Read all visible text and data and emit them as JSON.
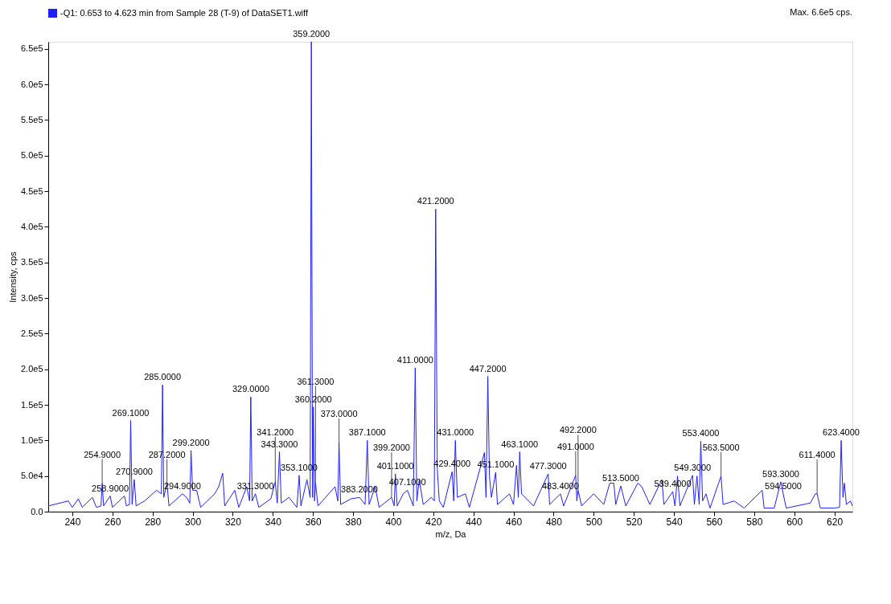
{
  "chart_data": {
    "type": "line",
    "xlabel": "m/z, Da",
    "ylabel": "Intensity, cps",
    "xlim": [
      228,
      629
    ],
    "xticks": [
      240,
      260,
      280,
      300,
      320,
      340,
      360,
      380,
      400,
      420,
      440,
      460,
      480,
      500,
      520,
      540,
      560,
      580,
      600,
      620
    ],
    "ylim": [
      0,
      660000
    ],
    "yticks": [
      {
        "value": 0,
        "label": "0.0"
      },
      {
        "value": 50000,
        "label": "5.0e4"
      },
      {
        "value": 100000,
        "label": "1.0e5"
      },
      {
        "value": 150000,
        "label": "1.5e5"
      },
      {
        "value": 200000,
        "label": "2.0e5"
      },
      {
        "value": 250000,
        "label": "2.5e5"
      },
      {
        "value": 300000,
        "label": "3.0e5"
      },
      {
        "value": 350000,
        "label": "3.5e5"
      },
      {
        "value": 400000,
        "label": "4.0e5"
      },
      {
        "value": 450000,
        "label": "4.5e5"
      },
      {
        "value": 500000,
        "label": "5.0e5"
      },
      {
        "value": 550000,
        "label": "5.5e5"
      },
      {
        "value": 600000,
        "label": "6.0e5"
      },
      {
        "value": 650000,
        "label": "6.5e5"
      }
    ],
    "grid": false,
    "legend": "top left",
    "marker": "none",
    "line_style": "solid",
    "series": [
      {
        "name": "-Q1: 0.653 to 4.623 min from Sample 28 (T-9) of DataSET1.wiff",
        "color": "#1f1fff",
        "x": [
          228,
          238,
          240,
          243,
          245,
          250,
          252,
          254.3,
          254.9,
          255.6,
          258.9,
          260,
          266,
          267,
          268.5,
          269.1,
          269.8,
          270.9,
          271.8,
          276,
          282,
          284.4,
          285.0,
          285.6,
          287.2,
          288.2,
          294.9,
          297,
          298.6,
          299.2,
          300,
          302,
          304,
          311,
          313,
          315,
          316,
          321,
          323,
          327,
          328.4,
          329.0,
          329.7,
          331.3,
          333,
          339,
          341.2,
          342.2,
          343.3,
          344.2,
          348,
          352,
          353.1,
          354,
          357,
          358.6,
          359.2,
          359.8,
          360.2,
          360.8,
          361.3,
          362.5,
          371,
          372.4,
          373.0,
          373.8,
          379,
          383.2,
          386,
          387.1,
          388,
          391,
          393,
          399.2,
          400.5,
          401.1,
          402,
          405,
          407.1,
          410,
          411.0,
          411.8,
          413,
          415,
          419,
          420.5,
          421.2,
          422,
          423,
          425,
          429.4,
          430.2,
          431.0,
          432,
          436,
          438,
          445.5,
          446.3,
          447.2,
          448,
          449,
          451.1,
          452,
          458,
          460,
          461.5,
          462.4,
          463.1,
          464,
          470,
          477.3,
          478,
          483.4,
          485,
          491.0,
          491.6,
          492.2,
          494,
          500,
          505,
          508,
          510,
          511,
          513.5,
          516,
          522,
          524,
          528,
          534,
          535,
          539.4,
          540.5,
          541.8,
          543,
          549.3,
          550.2,
          551.5,
          552.6,
          553.4,
          554.3,
          556,
          558,
          563.5,
          564.5,
          570,
          575,
          584,
          585,
          590,
          593.3,
          594.5,
          596,
          608,
          610.5,
          611.4,
          613,
          620,
          622.6,
          623.4,
          624.3,
          625,
          626,
          628,
          629
        ],
        "values": [
          8000,
          15000,
          6000,
          18000,
          6000,
          20000,
          6000,
          8000,
          40000,
          8000,
          22000,
          6000,
          22000,
          8000,
          10000,
          128000,
          10000,
          45000,
          8000,
          15000,
          30000,
          25000,
          178000,
          20000,
          40000,
          8000,
          25000,
          20000,
          12000,
          86000,
          30000,
          30000,
          6000,
          25000,
          35000,
          54000,
          8000,
          30000,
          6000,
          35000,
          15000,
          161000,
          15000,
          25000,
          6000,
          18000,
          42000,
          12000,
          84000,
          12000,
          20000,
          6000,
          51000,
          8000,
          45000,
          20000,
          660000,
          20000,
          147000,
          15000,
          40000,
          8000,
          35000,
          15000,
          97000,
          10000,
          18000,
          20000,
          10000,
          100000,
          10000,
          35000,
          6000,
          20000,
          8000,
          53000,
          8000,
          25000,
          30000,
          8000,
          202000,
          15000,
          45000,
          10000,
          20000,
          15000,
          425000,
          60000,
          15000,
          6000,
          56000,
          15000,
          100000,
          20000,
          25000,
          6000,
          83000,
          20000,
          190000,
          50000,
          20000,
          55000,
          10000,
          25000,
          10000,
          65000,
          20000,
          84000,
          25000,
          8000,
          53000,
          10000,
          25000,
          8000,
          51000,
          15000,
          30000,
          8000,
          25000,
          10000,
          40000,
          40000,
          10000,
          36000,
          8000,
          40000,
          35000,
          10000,
          45000,
          10000,
          28000,
          8000,
          50000,
          8000,
          51000,
          10000,
          50000,
          10000,
          99000,
          15000,
          25000,
          5000,
          50000,
          10000,
          15000,
          5000,
          30000,
          5000,
          5000,
          42000,
          25000,
          5000,
          12000,
          25000,
          25000,
          5000,
          5000,
          6000,
          100000,
          20000,
          40000,
          10000,
          15000,
          8000
        ]
      }
    ],
    "annotations": [
      {
        "text": "254.9000",
        "x": 254.9,
        "y": 40000
      },
      {
        "text": "258.9000",
        "x": 258.9,
        "y": 22000
      },
      {
        "text": "269.1000",
        "x": 269.1,
        "y": 128000
      },
      {
        "text": "270.9000",
        "x": 270.9,
        "y": 45000
      },
      {
        "text": "285.0000",
        "x": 285.0,
        "y": 178000
      },
      {
        "text": "287.2000",
        "x": 287.2,
        "y": 40000
      },
      {
        "text": "294.9000",
        "x": 294.9,
        "y": 25000
      },
      {
        "text": "299.2000",
        "x": 299.2,
        "y": 86000
      },
      {
        "text": "329.0000",
        "x": 329.0,
        "y": 161000
      },
      {
        "text": "331.3000",
        "x": 331.3,
        "y": 25000
      },
      {
        "text": "341.2000",
        "x": 341.2,
        "y": 42000
      },
      {
        "text": "343.3000",
        "x": 343.3,
        "y": 84000
      },
      {
        "text": "353.1000",
        "x": 353.1,
        "y": 51000
      },
      {
        "text": "359.2000",
        "x": 359.2,
        "y": 660000
      },
      {
        "text": "360.2000",
        "x": 360.2,
        "y": 147000
      },
      {
        "text": "361.3000",
        "x": 361.3,
        "y": 40000
      },
      {
        "text": "373.0000",
        "x": 373.0,
        "y": 97000
      },
      {
        "text": "383.2000",
        "x": 383.2,
        "y": 20000
      },
      {
        "text": "387.1000",
        "x": 387.1,
        "y": 100000
      },
      {
        "text": "399.2000",
        "x": 399.2,
        "y": 20000
      },
      {
        "text": "401.1000",
        "x": 401.1,
        "y": 53000
      },
      {
        "text": "407.1000",
        "x": 407.1,
        "y": 30000
      },
      {
        "text": "411.0000",
        "x": 411.0,
        "y": 202000
      },
      {
        "text": "421.2000",
        "x": 421.2,
        "y": 425000
      },
      {
        "text": "429.4000",
        "x": 429.4,
        "y": 56000
      },
      {
        "text": "431.0000",
        "x": 431.0,
        "y": 100000
      },
      {
        "text": "447.2000",
        "x": 447.2,
        "y": 190000
      },
      {
        "text": "451.1000",
        "x": 451.1,
        "y": 55000
      },
      {
        "text": "463.1000",
        "x": 463.1,
        "y": 84000
      },
      {
        "text": "477.3000",
        "x": 477.3,
        "y": 53000
      },
      {
        "text": "483.4000",
        "x": 483.4,
        "y": 25000
      },
      {
        "text": "491.0000",
        "x": 491.0,
        "y": 51000
      },
      {
        "text": "492.2000",
        "x": 492.2,
        "y": 30000
      },
      {
        "text": "513.5000",
        "x": 513.5,
        "y": 36000
      },
      {
        "text": "539.4000",
        "x": 539.4,
        "y": 28000
      },
      {
        "text": "549.3000",
        "x": 549.3,
        "y": 51000
      },
      {
        "text": "553.4000",
        "x": 553.4,
        "y": 99000
      },
      {
        "text": "563.5000",
        "x": 563.5,
        "y": 50000
      },
      {
        "text": "593.3000",
        "x": 593.3,
        "y": 42000
      },
      {
        "text": "594.5000",
        "x": 594.5,
        "y": 25000
      },
      {
        "text": "611.4000",
        "x": 611.4,
        "y": 25000
      },
      {
        "text": "623.4000",
        "x": 623.4,
        "y": 100000
      },
      "Max. 6.6e5 cps."
    ]
  }
}
